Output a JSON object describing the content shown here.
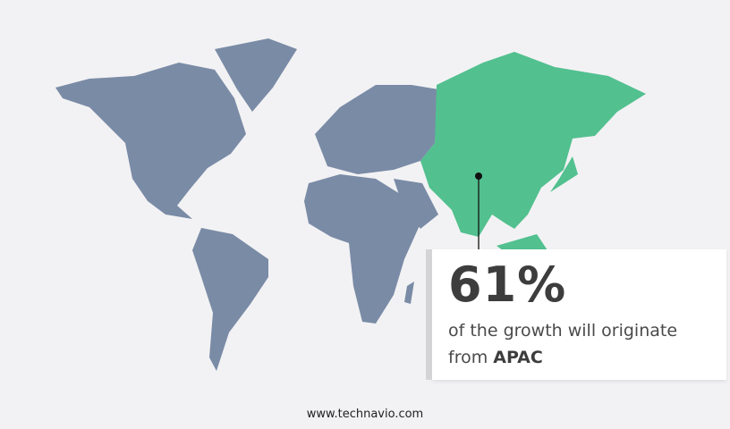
{
  "colors": {
    "background": "#f2f2f4",
    "map_other": "#7a8ba6",
    "map_highlight": "#52c08f",
    "text": "#3d3d3d"
  },
  "highlighted_region": "APAC",
  "callout": {
    "percent": "61%",
    "line1": "of the growth will originate",
    "line2_prefix": "from",
    "region": "APAC"
  },
  "footer": {
    "url": "www.technavio.com"
  }
}
